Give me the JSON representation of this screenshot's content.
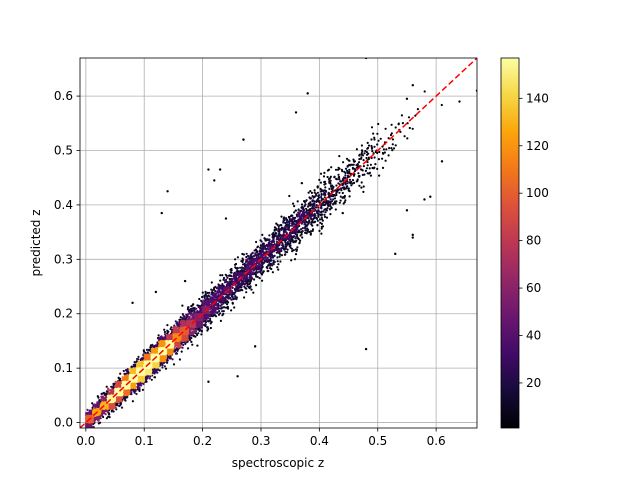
{
  "chart_data": {
    "type": "scatter",
    "title": "",
    "xlabel": "spectroscopic z",
    "ylabel": "predicted z",
    "xlim": [
      -0.01,
      0.67
    ],
    "ylim": [
      -0.01,
      0.67
    ],
    "x_ticks": [
      0.0,
      0.1,
      0.2,
      0.3,
      0.4,
      0.5,
      0.6
    ],
    "y_ticks": [
      0.0,
      0.1,
      0.2,
      0.3,
      0.4,
      0.5,
      0.6
    ],
    "x_tick_labels": [
      "0.0",
      "0.1",
      "0.2",
      "0.3",
      "0.4",
      "0.5",
      "0.6"
    ],
    "y_tick_labels": [
      "0.0",
      "0.1",
      "0.2",
      "0.3",
      "0.4",
      "0.5",
      "0.6"
    ],
    "grid": true,
    "point_coloring": "local density (point count)",
    "reference_line": {
      "type": "y = x",
      "color": "#ff0000",
      "style": "dashed"
    },
    "colorbar": {
      "colormap": "inferno",
      "range": [
        1,
        157
      ],
      "ticks": [
        20,
        40,
        60,
        80,
        100,
        120,
        140
      ],
      "tick_labels": [
        "20",
        "40",
        "60",
        "80",
        "100",
        "120",
        "140"
      ]
    },
    "density_core": [
      {
        "x": 0.02,
        "y": 0.02,
        "density": 60
      },
      {
        "x": 0.05,
        "y": 0.05,
        "density": 100
      },
      {
        "x": 0.08,
        "y": 0.08,
        "density": 150
      },
      {
        "x": 0.11,
        "y": 0.11,
        "density": 140
      },
      {
        "x": 0.14,
        "y": 0.14,
        "density": 110
      },
      {
        "x": 0.17,
        "y": 0.17,
        "density": 80
      },
      {
        "x": 0.2,
        "y": 0.2,
        "density": 50
      },
      {
        "x": 0.25,
        "y": 0.25,
        "density": 20
      },
      {
        "x": 0.3,
        "y": 0.3,
        "density": 8
      },
      {
        "x": 0.38,
        "y": 0.38,
        "density": 5
      },
      {
        "x": 0.45,
        "y": 0.45,
        "density": 3
      }
    ],
    "outliers": [
      {
        "x": 0.48,
        "y": 0.67
      },
      {
        "x": 0.38,
        "y": 0.605
      },
      {
        "x": 0.36,
        "y": 0.57
      },
      {
        "x": 0.56,
        "y": 0.62
      },
      {
        "x": 0.55,
        "y": 0.595
      },
      {
        "x": 0.64,
        "y": 0.59
      },
      {
        "x": 0.67,
        "y": 0.61
      },
      {
        "x": 0.27,
        "y": 0.52
      },
      {
        "x": 0.61,
        "y": 0.48
      },
      {
        "x": 0.59,
        "y": 0.415
      },
      {
        "x": 0.58,
        "y": 0.41
      },
      {
        "x": 0.55,
        "y": 0.39
      },
      {
        "x": 0.56,
        "y": 0.345
      },
      {
        "x": 0.56,
        "y": 0.34
      },
      {
        "x": 0.53,
        "y": 0.31
      },
      {
        "x": 0.48,
        "y": 0.135
      },
      {
        "x": 0.14,
        "y": 0.425
      },
      {
        "x": 0.13,
        "y": 0.385
      },
      {
        "x": 0.21,
        "y": 0.465
      },
      {
        "x": 0.23,
        "y": 0.465
      },
      {
        "x": 0.22,
        "y": 0.445
      },
      {
        "x": 0.24,
        "y": 0.375
      },
      {
        "x": 0.26,
        "y": 0.085
      },
      {
        "x": 0.21,
        "y": 0.075
      },
      {
        "x": 0.08,
        "y": 0.22
      },
      {
        "x": 0.12,
        "y": 0.24
      },
      {
        "x": 0.17,
        "y": 0.26
      },
      {
        "x": 0.29,
        "y": 0.14
      },
      {
        "x": 0.44,
        "y": 0.385
      },
      {
        "x": 0.37,
        "y": 0.44
      }
    ]
  }
}
